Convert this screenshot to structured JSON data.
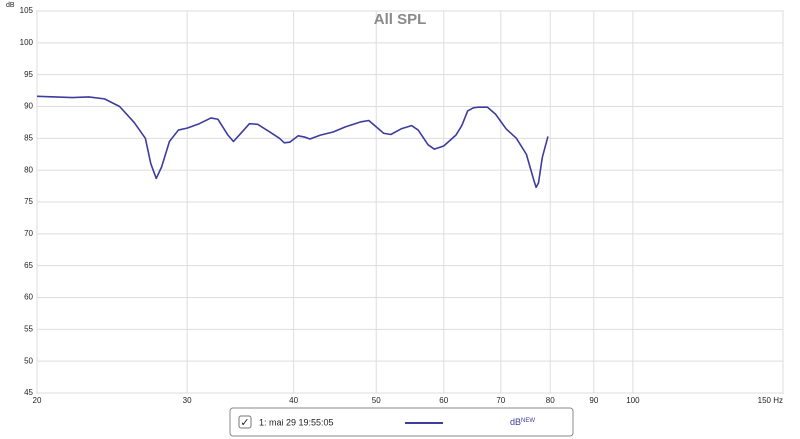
{
  "chart_data": {
    "type": "line",
    "title": "All SPL",
    "y_label": "dB",
    "log_x": true,
    "grid": true,
    "x": [
      20,
      21,
      22,
      23,
      24,
      25,
      26,
      26.8,
      27.2,
      27.6,
      28,
      28.6,
      29.3,
      30,
      31,
      32,
      32.6,
      33.5,
      34,
      34.8,
      35.5,
      36.3,
      37.5,
      38.5,
      39,
      39.6,
      40.5,
      41.2,
      41.8,
      43,
      44.5,
      46,
      48,
      49,
      50,
      51,
      52,
      53.5,
      55,
      56,
      57.5,
      58.5,
      60,
      62,
      63,
      64,
      65,
      66,
      67.5,
      69,
      71,
      73,
      75,
      76.5,
      77,
      77.5,
      78.3,
      79.5
    ],
    "series": [
      {
        "name": "1: mai 29 19:55:05",
        "color": "#3d3d9e",
        "unit": "dB",
        "unit_sup": "NEW",
        "checked": true,
        "values": [
          91.6,
          91.5,
          91.4,
          91.5,
          91.2,
          90,
          87.5,
          85,
          81,
          78.7,
          80.5,
          84.5,
          86.3,
          86.6,
          87.3,
          88.2,
          88,
          85.5,
          84.5,
          86,
          87.3,
          87.2,
          86,
          85,
          84.3,
          84.4,
          85.4,
          85.2,
          84.9,
          85.5,
          86,
          86.8,
          87.6,
          87.8,
          86.8,
          85.8,
          85.6,
          86.5,
          87,
          86.3,
          84,
          83.3,
          83.8,
          85.5,
          87,
          89.3,
          89.8,
          89.9,
          89.9,
          88.8,
          86.5,
          85,
          82.5,
          78.5,
          77.3,
          78,
          82,
          85.3
        ]
      }
    ],
    "xlim": [
      20,
      150
    ],
    "xticks": [
      20,
      30,
      40,
      50,
      60,
      70,
      80,
      90,
      100,
      {
        "value": 150,
        "label": "150 Hz"
      }
    ],
    "ylim": [
      45,
      105
    ],
    "yticks": [
      45,
      50,
      55,
      60,
      65,
      70,
      75,
      80,
      85,
      90,
      95,
      100,
      105
    ]
  }
}
